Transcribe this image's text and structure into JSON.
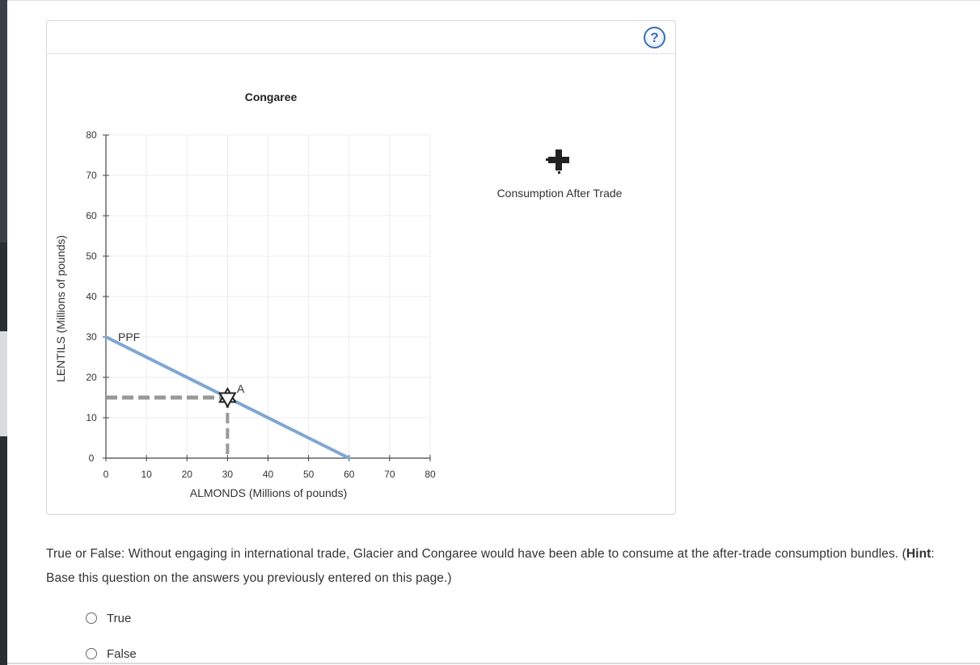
{
  "graph": {
    "title": "Congaree",
    "help_label": "?",
    "curve_label": "PPF",
    "point_label": "A",
    "legend_label": "Consumption After Trade",
    "legend_icon": "plus-icon",
    "colors": {
      "ppf": "#7ea6d4",
      "dashed": "#999999",
      "grid": "#ececec",
      "axis": "#444444",
      "help": "#3b6fb5"
    }
  },
  "chart_data": {
    "type": "line",
    "title": "Congaree",
    "xlabel": "ALMONDS (Millions of pounds)",
    "ylabel": "LENTILS (Millions of pounds)",
    "xlim": [
      0,
      80
    ],
    "ylim": [
      0,
      80
    ],
    "x_ticks": [
      "0",
      "10",
      "20",
      "30",
      "40",
      "50",
      "60",
      "70",
      "80"
    ],
    "y_ticks": [
      "0",
      "10",
      "20",
      "30",
      "40",
      "50",
      "60",
      "70",
      "80"
    ],
    "grid": true,
    "series": [
      {
        "name": "PPF",
        "x": [
          0,
          60
        ],
        "y": [
          30,
          0
        ]
      }
    ],
    "points": [
      {
        "label": "A",
        "x": 30,
        "y": 15
      }
    ],
    "legend": [
      {
        "name": "Consumption After Trade",
        "marker": "plus"
      }
    ]
  },
  "question": {
    "text_before_hint": "True or False: Without engaging in international trade, Glacier and Congaree would have been able to consume at the after-trade consumption bundles. (",
    "hint_label": "Hint",
    "text_after_hint": ": Base this question on the answers you previously entered on this page.)"
  },
  "options": [
    {
      "label": "True"
    },
    {
      "label": "False"
    }
  ]
}
